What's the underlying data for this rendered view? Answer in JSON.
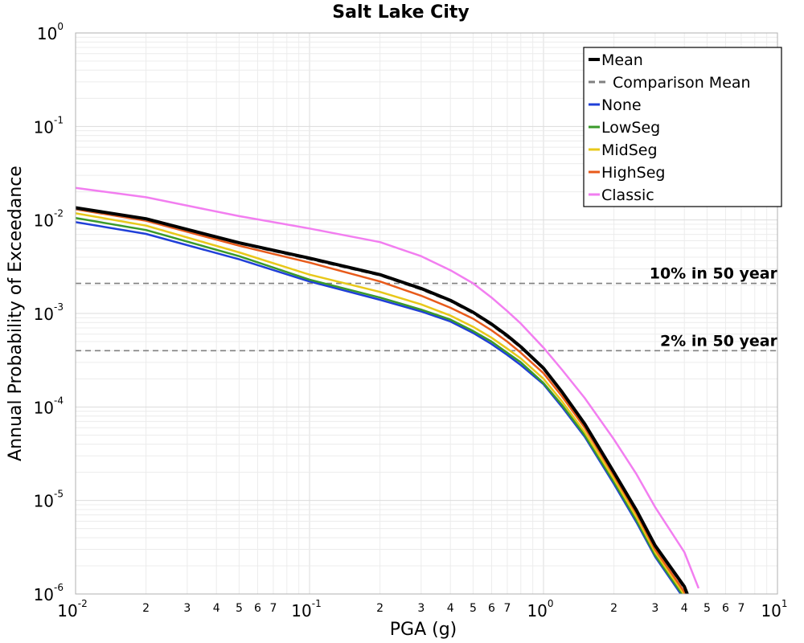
{
  "chart_data": {
    "type": "line",
    "title": "Salt Lake City",
    "xlabel": "PGA (g)",
    "ylabel": "Annual Probability of Exceedance",
    "x_scale": "log",
    "y_scale": "log",
    "xlim": [
      0.01,
      10
    ],
    "ylim": [
      1e-06,
      1
    ],
    "grid": true,
    "legend_position": "top-right",
    "x_major_ticks": [
      {
        "value": 0.01,
        "base": "10",
        "exp": "-2"
      },
      {
        "value": 0.1,
        "base": "10",
        "exp": "-1"
      },
      {
        "value": 1,
        "base": "10",
        "exp": "0"
      },
      {
        "value": 10,
        "base": "10",
        "exp": "1"
      }
    ],
    "x_minor_tick_labels": [
      "2",
      "3",
      "4",
      "5",
      "6",
      "7"
    ],
    "y_major_ticks": [
      {
        "value": 1,
        "base": "10",
        "exp": "0"
      },
      {
        "value": 0.1,
        "base": "10",
        "exp": "-1"
      },
      {
        "value": 0.01,
        "base": "10",
        "exp": "-2"
      },
      {
        "value": 0.001,
        "base": "10",
        "exp": "-3"
      },
      {
        "value": 0.0001,
        "base": "10",
        "exp": "-4"
      },
      {
        "value": 1e-05,
        "base": "10",
        "exp": "-5"
      },
      {
        "value": 1e-06,
        "base": "10",
        "exp": "-6"
      }
    ],
    "reference_lines": [
      {
        "label": "10% in 50 year",
        "y": 0.0021,
        "color": "#808080"
      },
      {
        "label": "2% in 50 year",
        "y": 0.0004,
        "color": "#808080"
      }
    ],
    "series": [
      {
        "name": "Mean",
        "color": "#000000",
        "style": "solid",
        "width": "thick",
        "x": [
          0.01,
          0.02,
          0.05,
          0.1,
          0.2,
          0.3,
          0.4,
          0.5,
          0.6,
          0.7,
          0.8,
          1.0,
          1.2,
          1.5,
          2.0,
          2.5,
          3.0,
          4.0,
          4.4
        ],
        "y": [
          0.0135,
          0.0103,
          0.0057,
          0.0039,
          0.0026,
          0.00185,
          0.00138,
          0.00103,
          0.00077,
          0.00058,
          0.00044,
          0.00026,
          0.000145,
          6.6e-05,
          2e-05,
          7.8e-06,
          3.3e-06,
          1.2e-06,
          6.5e-07
        ]
      },
      {
        "name": "Comparison Mean",
        "color": "#808080",
        "style": "dashed",
        "width": "normal",
        "x": [
          0.01,
          0.02,
          0.05,
          0.1,
          0.2,
          0.3,
          0.4,
          0.5,
          0.6,
          0.7,
          0.8,
          1.0,
          1.2,
          1.5,
          2.0,
          2.5,
          3.0,
          4.0,
          4.4
        ],
        "y": [
          0.0132,
          0.0101,
          0.0056,
          0.0038,
          0.00255,
          0.0018,
          0.00135,
          0.001,
          0.00075,
          0.00056,
          0.00043,
          0.000255,
          0.000142,
          6.4e-05,
          1.95e-05,
          7.6e-06,
          3.2e-06,
          1.15e-06,
          6.3e-07
        ]
      },
      {
        "name": "None",
        "color": "#1f3fd8",
        "style": "solid",
        "width": "normal",
        "x": [
          0.01,
          0.02,
          0.05,
          0.1,
          0.2,
          0.3,
          0.4,
          0.5,
          0.6,
          0.7,
          0.8,
          1.0,
          1.2,
          1.5,
          2.0,
          2.5,
          3.0,
          4.0,
          4.3
        ],
        "y": [
          0.0095,
          0.0071,
          0.0038,
          0.0022,
          0.0014,
          0.00105,
          0.00082,
          0.00062,
          0.00047,
          0.00036,
          0.00028,
          0.000175,
          0.0001,
          4.8e-05,
          1.5e-05,
          5.8e-06,
          2.5e-06,
          8.8e-07,
          5.8e-07
        ]
      },
      {
        "name": "LowSeg",
        "color": "#3a9a2a",
        "style": "solid",
        "width": "normal",
        "x": [
          0.01,
          0.02,
          0.05,
          0.1,
          0.2,
          0.3,
          0.4,
          0.5,
          0.6,
          0.7,
          0.8,
          1.0,
          1.2,
          1.5,
          2.0,
          2.5,
          3.0,
          4.0,
          4.3
        ],
        "y": [
          0.0105,
          0.0078,
          0.0041,
          0.0023,
          0.00148,
          0.0011,
          0.00086,
          0.00065,
          0.0005,
          0.00038,
          0.0003,
          0.00018,
          0.000105,
          5e-05,
          1.58e-05,
          6.1e-06,
          2.6e-06,
          9.2e-07,
          6e-07
        ]
      },
      {
        "name": "MidSeg",
        "color": "#e8c81a",
        "style": "solid",
        "width": "normal",
        "x": [
          0.01,
          0.02,
          0.05,
          0.1,
          0.2,
          0.3,
          0.4,
          0.5,
          0.6,
          0.7,
          0.8,
          1.0,
          1.2,
          1.5,
          2.0,
          2.5,
          3.0,
          4.0,
          4.35
        ],
        "y": [
          0.0118,
          0.0087,
          0.0045,
          0.0026,
          0.0017,
          0.00125,
          0.00095,
          0.00072,
          0.00055,
          0.00042,
          0.00033,
          0.0002,
          0.000115,
          5.4e-05,
          1.7e-05,
          6.6e-06,
          2.8e-06,
          9.8e-07,
          6.2e-07
        ]
      },
      {
        "name": "HighSeg",
        "color": "#e85a1a",
        "style": "solid",
        "width": "normal",
        "x": [
          0.01,
          0.02,
          0.05,
          0.1,
          0.2,
          0.3,
          0.4,
          0.5,
          0.6,
          0.7,
          0.8,
          1.0,
          1.2,
          1.5,
          2.0,
          2.5,
          3.0,
          4.0,
          4.4
        ],
        "y": [
          0.013,
          0.0098,
          0.0053,
          0.0035,
          0.0022,
          0.00155,
          0.00115,
          0.00088,
          0.00066,
          0.0005,
          0.00038,
          0.00023,
          0.00013,
          6e-05,
          1.85e-05,
          7.2e-06,
          3e-06,
          1.05e-06,
          6.5e-07
        ]
      },
      {
        "name": "Classic",
        "color": "#f27ef0",
        "style": "solid",
        "width": "normal",
        "x": [
          0.01,
          0.02,
          0.05,
          0.1,
          0.2,
          0.3,
          0.4,
          0.5,
          0.6,
          0.7,
          0.8,
          1.0,
          1.2,
          1.5,
          2.0,
          2.5,
          3.0,
          4.0,
          4.6
        ],
        "y": [
          0.022,
          0.0175,
          0.011,
          0.0081,
          0.0058,
          0.0041,
          0.0029,
          0.0021,
          0.00148,
          0.00106,
          0.00078,
          0.00043,
          0.00025,
          0.000125,
          4.5e-05,
          1.9e-05,
          8.5e-06,
          2.8e-06,
          1.15e-06
        ]
      }
    ]
  }
}
